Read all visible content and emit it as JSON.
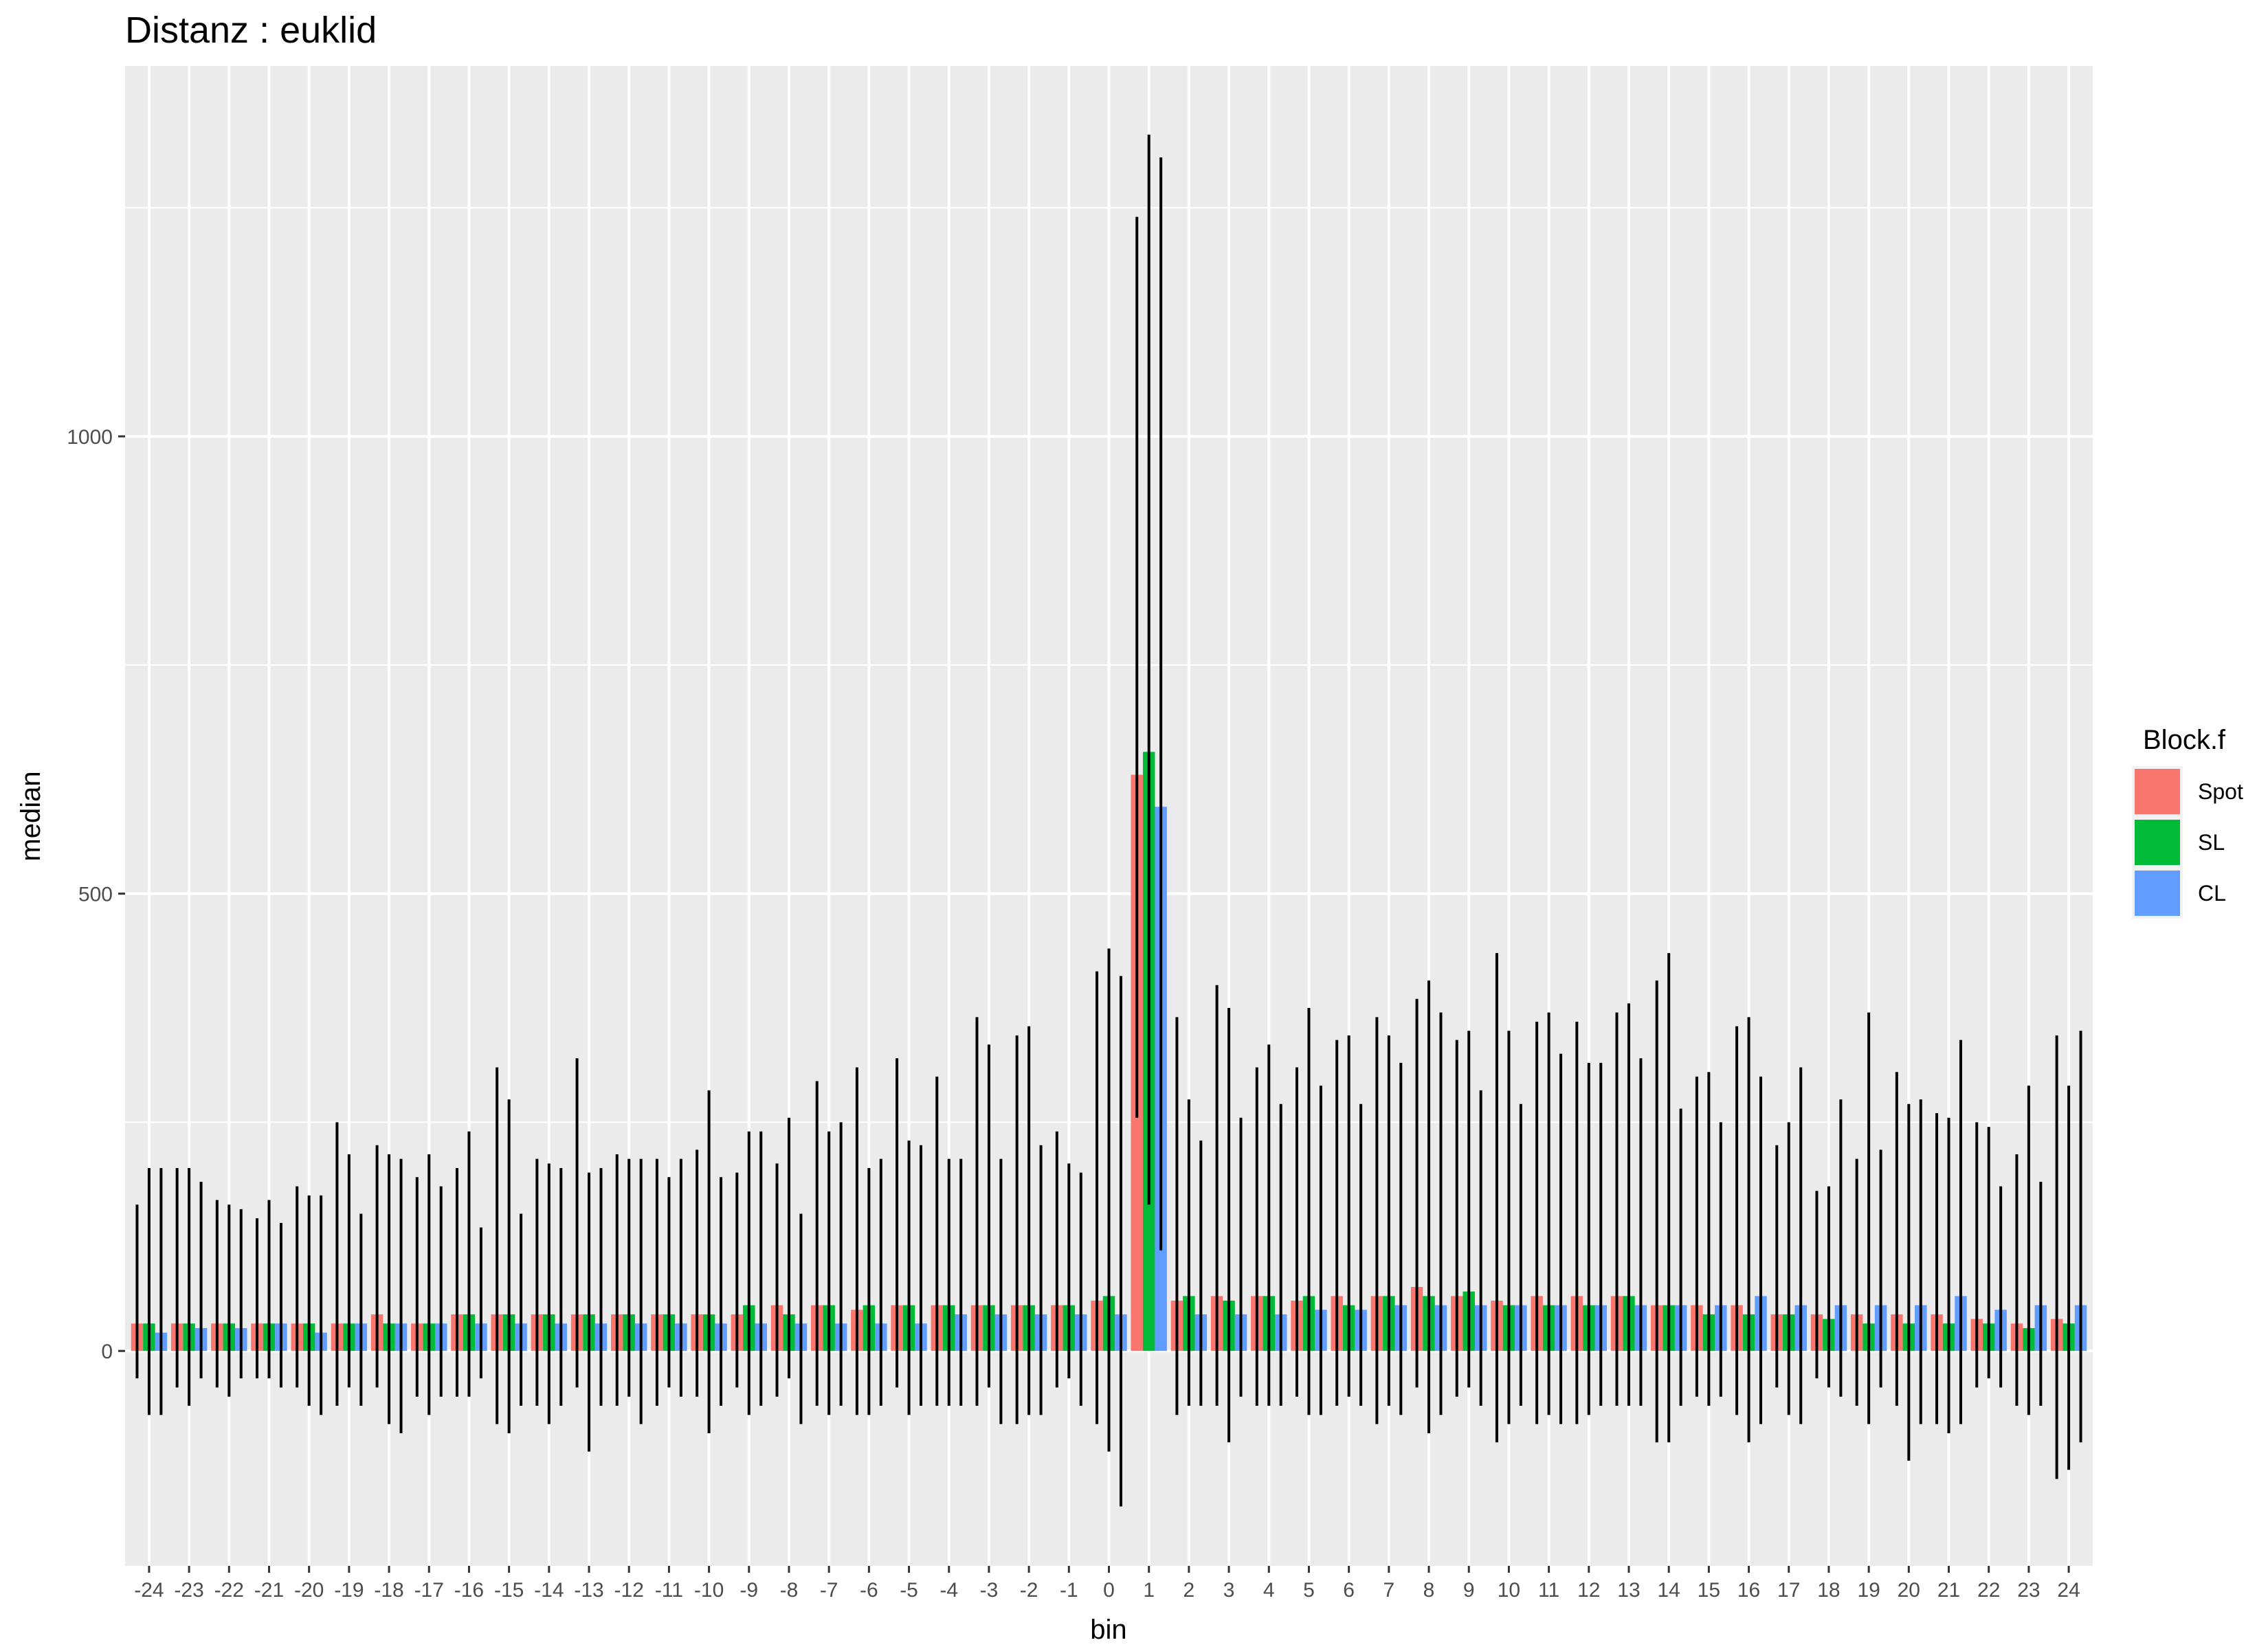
{
  "chart_data": {
    "type": "bar",
    "title": "Distanz : euklid",
    "xlabel": "bin",
    "ylabel": "median",
    "ylim": [
      -235,
      1405
    ],
    "yticks": [
      0,
      500,
      1000
    ],
    "grid": true,
    "legend": {
      "title": "Block.f",
      "position": "right"
    },
    "categories": [
      "-24",
      "-23",
      "-22",
      "-21",
      "-20",
      "-19",
      "-18",
      "-17",
      "-16",
      "-15",
      "-14",
      "-13",
      "-12",
      "-11",
      "-10",
      "-9",
      "-8",
      "-7",
      "-6",
      "-5",
      "-4",
      "-3",
      "-2",
      "-1",
      "0",
      "1",
      "2",
      "3",
      "4",
      "5",
      "6",
      "7",
      "8",
      "9",
      "10",
      "11",
      "12",
      "13",
      "14",
      "15",
      "16",
      "17",
      "18",
      "19",
      "20",
      "21",
      "22",
      "23",
      "24"
    ],
    "series": [
      {
        "name": "Spot",
        "color": "#F8766D",
        "values": [
          30,
          30,
          30,
          30,
          30,
          30,
          40,
          30,
          40,
          40,
          40,
          40,
          40,
          40,
          40,
          40,
          50,
          50,
          45,
          50,
          50,
          50,
          50,
          50,
          55,
          630,
          55,
          60,
          60,
          55,
          60,
          60,
          70,
          60,
          55,
          60,
          60,
          60,
          50,
          50,
          50,
          40,
          40,
          40,
          40,
          40,
          35,
          30,
          35
        ],
        "err_low": [
          -30,
          -40,
          -40,
          -30,
          -40,
          -60,
          -40,
          -50,
          -50,
          -80,
          -60,
          -40,
          -60,
          -60,
          -50,
          -40,
          -50,
          -60,
          -70,
          -40,
          -60,
          -60,
          -80,
          -40,
          -80,
          255,
          -70,
          -60,
          -60,
          -50,
          -60,
          -80,
          -40,
          -50,
          -100,
          -80,
          -80,
          -60,
          -100,
          -50,
          -70,
          -40,
          -30,
          -60,
          -60,
          -80,
          -40,
          -60,
          -140
        ],
        "err_high": [
          160,
          200,
          165,
          145,
          180,
          250,
          225,
          190,
          200,
          310,
          210,
          320,
          215,
          210,
          220,
          195,
          205,
          295,
          310,
          320,
          300,
          365,
          345,
          240,
          415,
          1240,
          365,
          400,
          310,
          310,
          340,
          365,
          385,
          340,
          435,
          360,
          360,
          370,
          405,
          300,
          355,
          225,
          175,
          210,
          305,
          260,
          250,
          215,
          345
        ]
      },
      {
        "name": "SL",
        "color": "#00BA38",
        "values": [
          30,
          30,
          30,
          30,
          30,
          30,
          30,
          30,
          40,
          40,
          40,
          40,
          40,
          40,
          40,
          50,
          40,
          50,
          50,
          50,
          50,
          50,
          50,
          50,
          60,
          655,
          60,
          55,
          60,
          60,
          50,
          60,
          60,
          65,
          50,
          50,
          50,
          60,
          50,
          40,
          40,
          40,
          35,
          30,
          30,
          30,
          30,
          25,
          30
        ],
        "err_low": [
          -70,
          -60,
          -50,
          -30,
          -60,
          -40,
          -80,
          -70,
          -50,
          -90,
          -80,
          -110,
          -50,
          -40,
          -90,
          -70,
          -30,
          -70,
          -70,
          -70,
          -60,
          -40,
          -70,
          -30,
          -110,
          160,
          -60,
          -100,
          -60,
          -70,
          -50,
          -60,
          -90,
          -40,
          -80,
          -70,
          -70,
          -60,
          -100,
          -60,
          -100,
          -70,
          -40,
          -80,
          -120,
          -90,
          -30,
          -70,
          -130
        ],
        "err_high": [
          200,
          200,
          160,
          165,
          170,
          215,
          215,
          215,
          240,
          275,
          205,
          195,
          210,
          190,
          285,
          240,
          255,
          240,
          200,
          230,
          210,
          335,
          355,
          205,
          440,
          1330,
          275,
          375,
          335,
          375,
          345,
          345,
          405,
          350,
          350,
          370,
          315,
          380,
          435,
          305,
          365,
          250,
          180,
          370,
          270,
          255,
          245,
          290,
          290
        ]
      },
      {
        "name": "CL",
        "color": "#619CFF",
        "values": [
          20,
          25,
          25,
          30,
          20,
          30,
          30,
          30,
          30,
          30,
          30,
          30,
          30,
          30,
          30,
          30,
          30,
          30,
          30,
          30,
          40,
          40,
          40,
          40,
          40,
          595,
          40,
          40,
          40,
          45,
          45,
          50,
          50,
          50,
          50,
          50,
          50,
          50,
          50,
          50,
          60,
          50,
          50,
          50,
          50,
          60,
          45,
          50,
          50
        ],
        "err_low": [
          -70,
          -30,
          -30,
          -40,
          -70,
          -60,
          -90,
          -50,
          -30,
          -60,
          -60,
          -60,
          -80,
          -50,
          -60,
          -60,
          -80,
          -60,
          -60,
          -60,
          -60,
          -80,
          -70,
          -60,
          -170,
          110,
          -60,
          -50,
          -60,
          -70,
          -60,
          -70,
          -70,
          -60,
          -60,
          -80,
          -60,
          -60,
          -60,
          -50,
          -80,
          -80,
          -50,
          -40,
          -80,
          -80,
          -40,
          -60,
          -100
        ],
        "err_high": [
          200,
          185,
          155,
          140,
          170,
          150,
          210,
          180,
          135,
          150,
          200,
          200,
          210,
          210,
          190,
          240,
          150,
          250,
          210,
          225,
          210,
          210,
          225,
          195,
          410,
          1305,
          230,
          255,
          270,
          290,
          270,
          315,
          370,
          285,
          270,
          325,
          315,
          320,
          265,
          250,
          300,
          310,
          275,
          220,
          275,
          340,
          180,
          185,
          350
        ]
      }
    ]
  }
}
